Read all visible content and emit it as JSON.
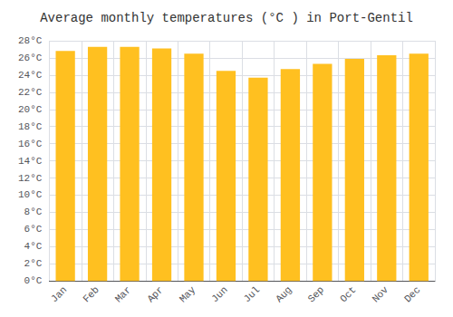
{
  "chart_data": {
    "type": "bar",
    "title": "Average monthly temperatures (°C ) in Port-Gentil",
    "categories": [
      "Jan",
      "Feb",
      "Mar",
      "Apr",
      "May",
      "Jun",
      "Jul",
      "Aug",
      "Sep",
      "Oct",
      "Nov",
      "Dec"
    ],
    "values": [
      26.8,
      27.3,
      27.3,
      27.1,
      26.5,
      24.5,
      23.7,
      24.7,
      25.3,
      25.9,
      26.3,
      26.5
    ],
    "color": "#FFC020",
    "ylim": [
      0,
      28
    ],
    "yticks": [
      {
        "value": 0,
        "label": "0°C"
      },
      {
        "value": 2,
        "label": "2°C"
      },
      {
        "value": 4,
        "label": "4°C"
      },
      {
        "value": 6,
        "label": "6°C"
      },
      {
        "value": 8,
        "label": "8°C"
      },
      {
        "value": 10,
        "label": "10°C"
      },
      {
        "value": 12,
        "label": "12°C"
      },
      {
        "value": 14,
        "label": "14°C"
      },
      {
        "value": 16,
        "label": "16°C"
      },
      {
        "value": 18,
        "label": "18°C"
      },
      {
        "value": 20,
        "label": "20°C"
      },
      {
        "value": 22,
        "label": "22°C"
      },
      {
        "value": 24,
        "label": "24°C"
      },
      {
        "value": 26,
        "label": "26°C"
      },
      {
        "value": 28,
        "label": "28°C"
      }
    ],
    "grid": true
  }
}
